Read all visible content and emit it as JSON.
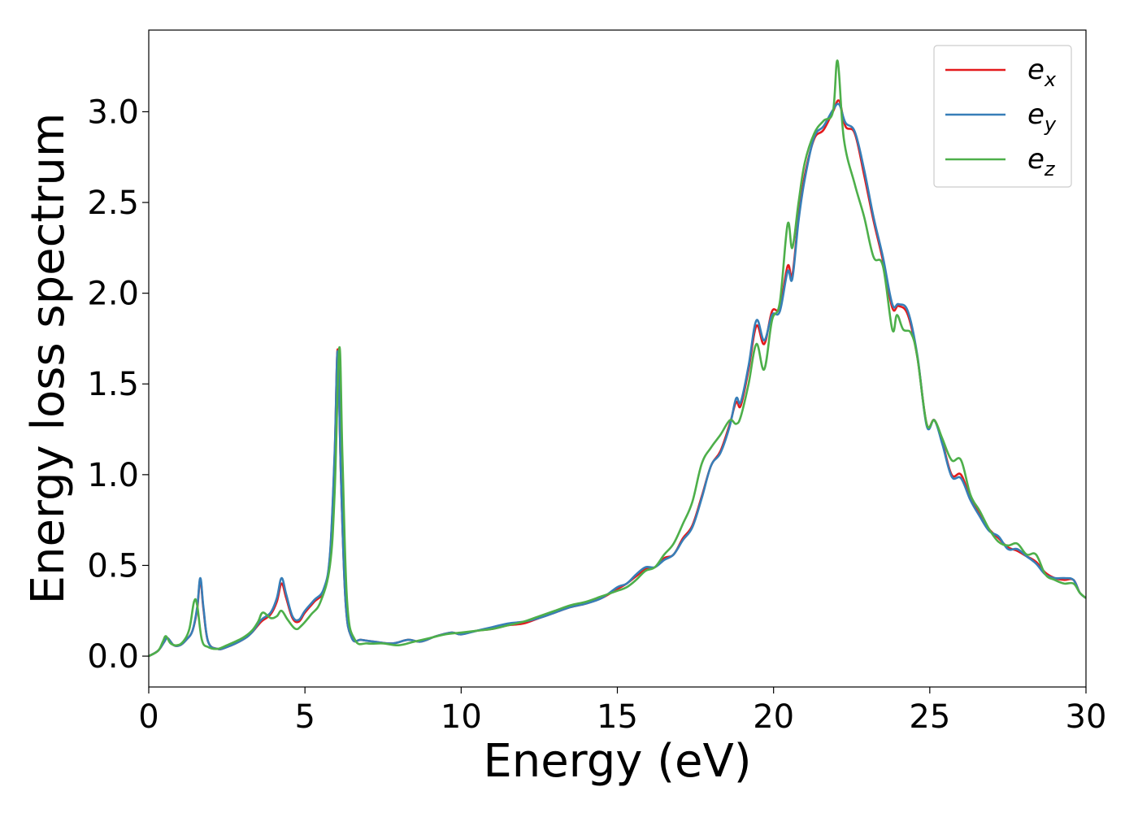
{
  "chart_data": {
    "type": "line",
    "xlabel": "Energy (eV)",
    "ylabel": "Energy loss spectrum",
    "xlim": [
      0,
      30
    ],
    "ylim": [
      -0.17,
      3.45
    ],
    "xticks": [
      "0",
      "5",
      "10",
      "15",
      "20",
      "25",
      "30"
    ],
    "yticks": [
      "0.0",
      "0.5",
      "1.0",
      "1.5",
      "2.0",
      "2.5",
      "3.0"
    ],
    "grid": false,
    "legend_position": "top-right",
    "series": [
      {
        "name": "e_x",
        "label_main": "e",
        "label_sub": "x",
        "color": "#e41a1c",
        "x": [
          0,
          0.3,
          0.5,
          0.6,
          0.8,
          1.0,
          1.2,
          1.4,
          1.55,
          1.65,
          1.75,
          1.9,
          2.2,
          2.5,
          3.0,
          3.3,
          3.6,
          3.9,
          4.1,
          4.25,
          4.4,
          4.6,
          4.8,
          5.0,
          5.3,
          5.6,
          5.8,
          5.95,
          6.05,
          6.15,
          6.3,
          6.5,
          6.8,
          7.2,
          7.8,
          8.3,
          8.7,
          9.2,
          9.7,
          10.0,
          10.5,
          11.0,
          11.5,
          12.0,
          12.5,
          13.0,
          13.5,
          14.0,
          14.5,
          15.0,
          15.3,
          15.6,
          15.9,
          16.2,
          16.5,
          16.8,
          17.1,
          17.4,
          17.7,
          18.0,
          18.3,
          18.6,
          18.8,
          18.95,
          19.2,
          19.45,
          19.7,
          19.95,
          20.2,
          20.45,
          20.6,
          20.8,
          21.0,
          21.3,
          21.6,
          21.9,
          22.1,
          22.3,
          22.6,
          22.9,
          23.2,
          23.5,
          23.8,
          24.0,
          24.3,
          24.6,
          24.9,
          25.15,
          25.4,
          25.7,
          26.0,
          26.3,
          26.6,
          26.9,
          27.2,
          27.5,
          27.8,
          28.1,
          28.4,
          28.7,
          29.0,
          29.3,
          29.6,
          29.8,
          30.0
        ],
        "y": [
          0.0,
          0.03,
          0.08,
          0.1,
          0.06,
          0.06,
          0.09,
          0.14,
          0.26,
          0.42,
          0.26,
          0.08,
          0.04,
          0.05,
          0.09,
          0.13,
          0.19,
          0.23,
          0.3,
          0.4,
          0.32,
          0.21,
          0.19,
          0.24,
          0.3,
          0.36,
          0.55,
          1.1,
          1.69,
          1.0,
          0.3,
          0.1,
          0.09,
          0.08,
          0.07,
          0.09,
          0.08,
          0.11,
          0.13,
          0.12,
          0.14,
          0.15,
          0.17,
          0.18,
          0.21,
          0.24,
          0.27,
          0.29,
          0.32,
          0.37,
          0.4,
          0.44,
          0.48,
          0.49,
          0.54,
          0.56,
          0.65,
          0.72,
          0.88,
          1.05,
          1.13,
          1.28,
          1.4,
          1.38,
          1.58,
          1.82,
          1.72,
          1.9,
          1.92,
          2.15,
          2.1,
          2.42,
          2.65,
          2.85,
          2.9,
          3.0,
          3.06,
          2.92,
          2.88,
          2.65,
          2.4,
          2.18,
          1.92,
          1.93,
          1.88,
          1.65,
          1.28,
          1.3,
          1.18,
          1.0,
          1.0,
          0.87,
          0.78,
          0.7,
          0.65,
          0.6,
          0.58,
          0.55,
          0.52,
          0.46,
          0.43,
          0.42,
          0.42,
          0.35,
          0.32
        ]
      },
      {
        "name": "e_y",
        "label_main": "e",
        "label_sub": "y",
        "color": "#377eb8",
        "x": [
          0,
          0.3,
          0.5,
          0.6,
          0.8,
          1.0,
          1.2,
          1.4,
          1.55,
          1.65,
          1.75,
          1.9,
          2.2,
          2.5,
          3.0,
          3.3,
          3.6,
          3.9,
          4.1,
          4.25,
          4.4,
          4.6,
          4.8,
          5.0,
          5.3,
          5.6,
          5.8,
          5.95,
          6.05,
          6.15,
          6.3,
          6.5,
          6.8,
          7.2,
          7.8,
          8.3,
          8.7,
          9.2,
          9.7,
          10.0,
          10.5,
          11.0,
          11.5,
          12.0,
          12.5,
          13.0,
          13.5,
          14.0,
          14.5,
          15.0,
          15.3,
          15.6,
          15.9,
          16.2,
          16.5,
          16.8,
          17.1,
          17.4,
          17.7,
          18.0,
          18.3,
          18.6,
          18.8,
          18.95,
          19.2,
          19.45,
          19.7,
          19.95,
          20.2,
          20.45,
          20.6,
          20.8,
          21.0,
          21.3,
          21.6,
          21.9,
          22.1,
          22.3,
          22.6,
          22.9,
          23.2,
          23.5,
          23.8,
          24.0,
          24.3,
          24.6,
          24.9,
          25.15,
          25.4,
          25.7,
          26.0,
          26.3,
          26.6,
          26.9,
          27.2,
          27.5,
          27.8,
          28.1,
          28.4,
          28.7,
          29.0,
          29.3,
          29.6,
          29.8,
          30.0
        ],
        "y": [
          0.0,
          0.03,
          0.08,
          0.1,
          0.06,
          0.06,
          0.09,
          0.14,
          0.27,
          0.43,
          0.27,
          0.08,
          0.04,
          0.05,
          0.09,
          0.13,
          0.2,
          0.24,
          0.32,
          0.43,
          0.34,
          0.22,
          0.2,
          0.25,
          0.31,
          0.37,
          0.56,
          1.12,
          1.68,
          1.0,
          0.3,
          0.1,
          0.09,
          0.08,
          0.07,
          0.09,
          0.08,
          0.11,
          0.13,
          0.12,
          0.14,
          0.16,
          0.18,
          0.19,
          0.21,
          0.24,
          0.27,
          0.29,
          0.32,
          0.38,
          0.4,
          0.45,
          0.49,
          0.49,
          0.53,
          0.56,
          0.64,
          0.71,
          0.87,
          1.05,
          1.12,
          1.27,
          1.42,
          1.4,
          1.6,
          1.85,
          1.74,
          1.88,
          1.9,
          2.12,
          2.08,
          2.4,
          2.63,
          2.86,
          2.92,
          3.01,
          3.04,
          2.94,
          2.89,
          2.68,
          2.42,
          2.2,
          1.94,
          1.94,
          1.9,
          1.66,
          1.27,
          1.3,
          1.17,
          0.99,
          0.98,
          0.86,
          0.77,
          0.69,
          0.66,
          0.59,
          0.59,
          0.55,
          0.51,
          0.45,
          0.43,
          0.43,
          0.42,
          0.35,
          0.32
        ]
      },
      {
        "name": "e_z",
        "label_main": "e",
        "label_sub": "z",
        "color": "#4daf4a",
        "x": [
          0,
          0.3,
          0.45,
          0.55,
          0.7,
          0.9,
          1.1,
          1.3,
          1.45,
          1.55,
          1.7,
          1.9,
          2.2,
          2.5,
          3.0,
          3.3,
          3.5,
          3.65,
          3.9,
          4.1,
          4.25,
          4.45,
          4.7,
          4.9,
          5.2,
          5.5,
          5.8,
          5.95,
          6.1,
          6.2,
          6.35,
          6.6,
          7.0,
          7.5,
          8.0,
          8.5,
          9.0,
          9.5,
          10.0,
          10.5,
          11.0,
          11.5,
          12.0,
          12.5,
          13.0,
          13.5,
          14.0,
          14.5,
          15.0,
          15.3,
          15.6,
          15.9,
          16.2,
          16.5,
          16.8,
          17.1,
          17.4,
          17.7,
          18.0,
          18.3,
          18.6,
          18.8,
          18.95,
          19.2,
          19.45,
          19.7,
          19.95,
          20.2,
          20.45,
          20.6,
          20.8,
          21.0,
          21.3,
          21.6,
          21.9,
          22.05,
          22.25,
          22.6,
          22.9,
          23.2,
          23.5,
          23.8,
          23.95,
          24.15,
          24.4,
          24.6,
          24.9,
          25.15,
          25.4,
          25.7,
          26.0,
          26.3,
          26.6,
          26.9,
          27.2,
          27.5,
          27.8,
          28.1,
          28.4,
          28.7,
          29.0,
          29.3,
          29.6,
          29.8,
          30.0
        ],
        "y": [
          0.0,
          0.03,
          0.08,
          0.11,
          0.07,
          0.06,
          0.08,
          0.15,
          0.3,
          0.28,
          0.09,
          0.05,
          0.04,
          0.06,
          0.1,
          0.14,
          0.19,
          0.24,
          0.21,
          0.22,
          0.25,
          0.2,
          0.15,
          0.17,
          0.23,
          0.3,
          0.5,
          0.9,
          1.7,
          1.1,
          0.3,
          0.09,
          0.07,
          0.07,
          0.06,
          0.08,
          0.1,
          0.12,
          0.13,
          0.14,
          0.15,
          0.17,
          0.19,
          0.22,
          0.25,
          0.28,
          0.3,
          0.33,
          0.36,
          0.38,
          0.42,
          0.47,
          0.49,
          0.56,
          0.62,
          0.73,
          0.85,
          1.06,
          1.15,
          1.22,
          1.3,
          1.28,
          1.32,
          1.5,
          1.72,
          1.58,
          1.85,
          1.95,
          2.38,
          2.25,
          2.5,
          2.72,
          2.88,
          2.95,
          3.0,
          3.28,
          2.85,
          2.6,
          2.42,
          2.2,
          2.15,
          1.8,
          1.88,
          1.8,
          1.78,
          1.65,
          1.28,
          1.3,
          1.2,
          1.08,
          1.08,
          0.89,
          0.8,
          0.7,
          0.63,
          0.61,
          0.62,
          0.56,
          0.56,
          0.45,
          0.42,
          0.4,
          0.4,
          0.35,
          0.32
        ]
      }
    ]
  }
}
